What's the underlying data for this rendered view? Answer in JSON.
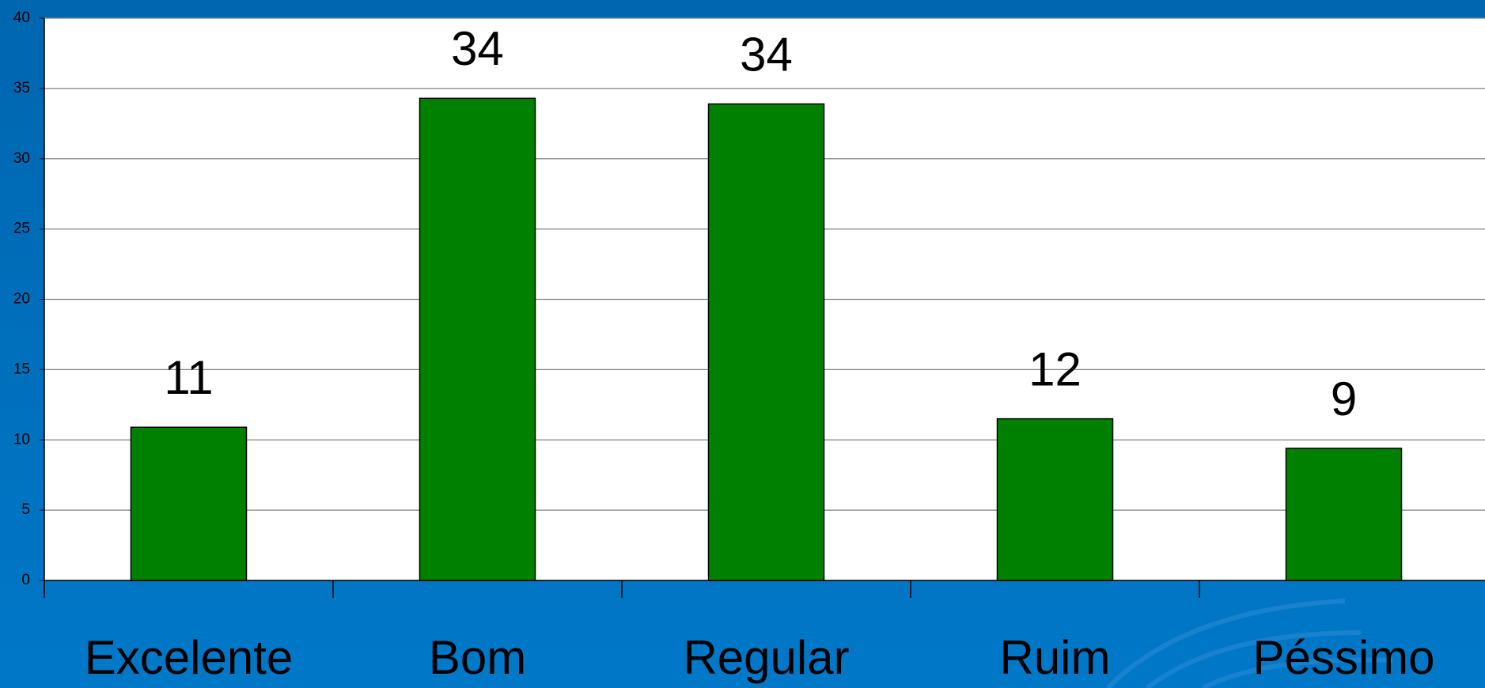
{
  "chart_data": {
    "type": "bar",
    "categories": [
      "Excelente",
      "Bom",
      "Regular",
      "Ruim",
      "Péssimo"
    ],
    "values": [
      10.9,
      34.3,
      33.9,
      11.5,
      9.4
    ],
    "value_labels": [
      "11",
      "34",
      "34",
      "12",
      "9"
    ],
    "color": "#008000",
    "ylim": [
      0,
      40
    ],
    "yticks": [
      0,
      5,
      10,
      15,
      20,
      25,
      30,
      35,
      40
    ],
    "grid": true
  }
}
